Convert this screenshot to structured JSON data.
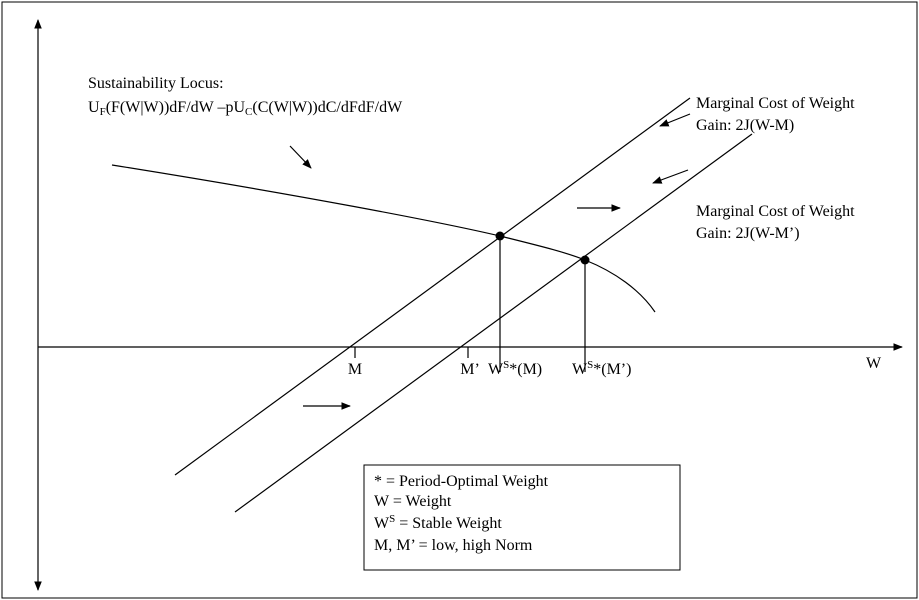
{
  "locus_label": {
    "title": "Sustainability Locus:",
    "formula": [
      "U",
      "F",
      "(F(W|W))dF/dW –pU",
      "C",
      "(C(W|W))dC/dFdF/dW"
    ]
  },
  "lines": [
    {
      "label": [
        "Marginal Cost of Weight",
        "Gain: 2J(W-M)"
      ]
    },
    {
      "label": [
        "Marginal Cost of Weight",
        "Gain: 2J(W-M’)"
      ]
    }
  ],
  "axis": {
    "x_label": "W",
    "ticks": [
      "M",
      "M’"
    ],
    "points": [
      [
        "W",
        "S",
        "*(M)"
      ],
      [
        "W",
        "S",
        "*(M’)"
      ]
    ]
  },
  "legend": {
    "items": [
      [
        "* = Period-Optimal Weight"
      ],
      [
        "W = Weight"
      ],
      [
        "W",
        "S",
        " = Stable Weight"
      ],
      [
        "M, M’ = low, high Norm"
      ]
    ]
  }
}
